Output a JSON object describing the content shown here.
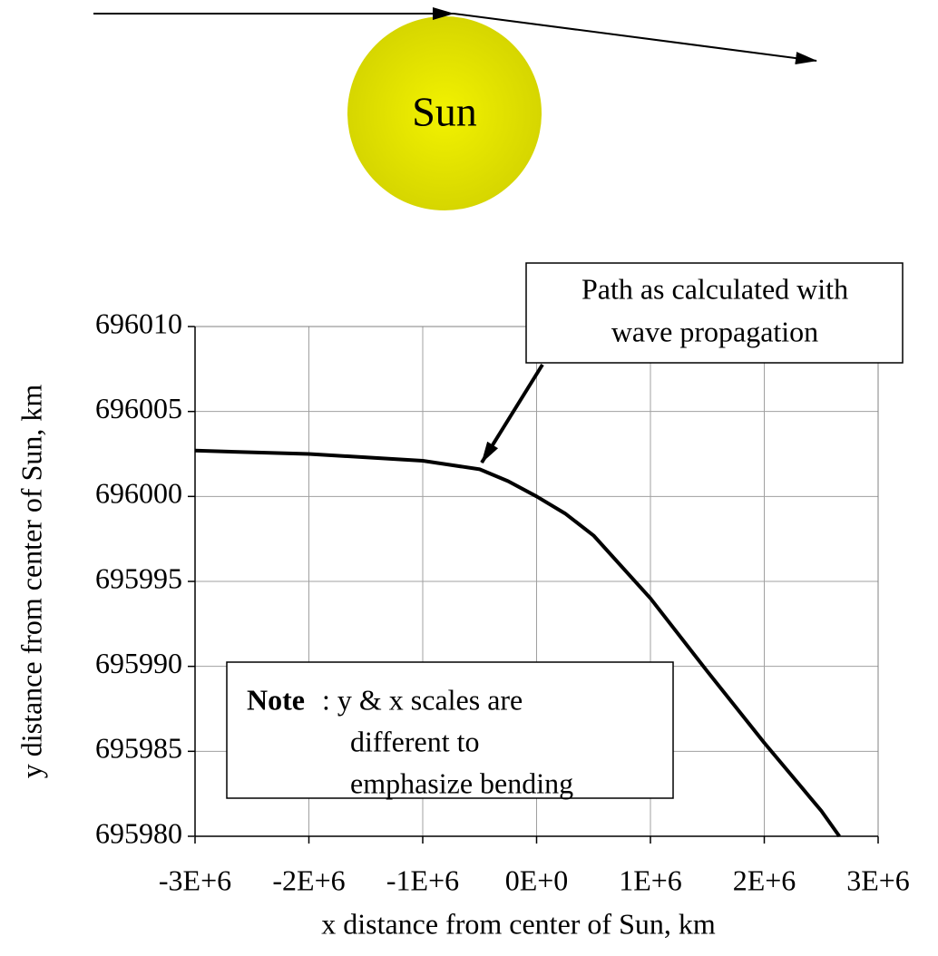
{
  "diagram": {
    "label": "Sun"
  },
  "chart_data": {
    "type": "line",
    "xlabel": "x distance from center of Sun, km",
    "ylabel": "y distance from center of Sun, km",
    "x": [
      -3000000,
      -2000000,
      -1000000,
      -500000,
      -250000,
      0,
      250000,
      500000,
      1000000,
      1500000,
      2000000,
      2500000,
      2660000
    ],
    "values": [
      696002.7,
      696002.5,
      696002.1,
      696001.6,
      696000.9,
      696000.0,
      695999.0,
      695997.7,
      695994.0,
      695989.7,
      695985.5,
      695981.5,
      695980.0
    ],
    "color": "#000000",
    "xlim": [
      -3000000,
      3000000
    ],
    "xticks": [
      {
        "value": -3000000,
        "label": "-3E+6"
      },
      {
        "value": -2000000,
        "label": "-2E+6"
      },
      {
        "value": -1000000,
        "label": "-1E+6"
      },
      {
        "value": 0,
        "label": "0E+0"
      },
      {
        "value": 1000000,
        "label": "1E+6"
      },
      {
        "value": 2000000,
        "label": "2E+6"
      },
      {
        "value": 3000000,
        "label": "3E+6"
      }
    ],
    "ylim": [
      695980,
      696010
    ],
    "yticks": [
      695980,
      695985,
      695990,
      695995,
      696000,
      696005,
      696010
    ],
    "grid": true,
    "callout_lines": [
      "Path as calculated with",
      "wave propagation"
    ],
    "note_bold": "Note",
    "note_lines": [
      ": y & x scales are",
      "different to",
      "emphasize bending"
    ]
  }
}
